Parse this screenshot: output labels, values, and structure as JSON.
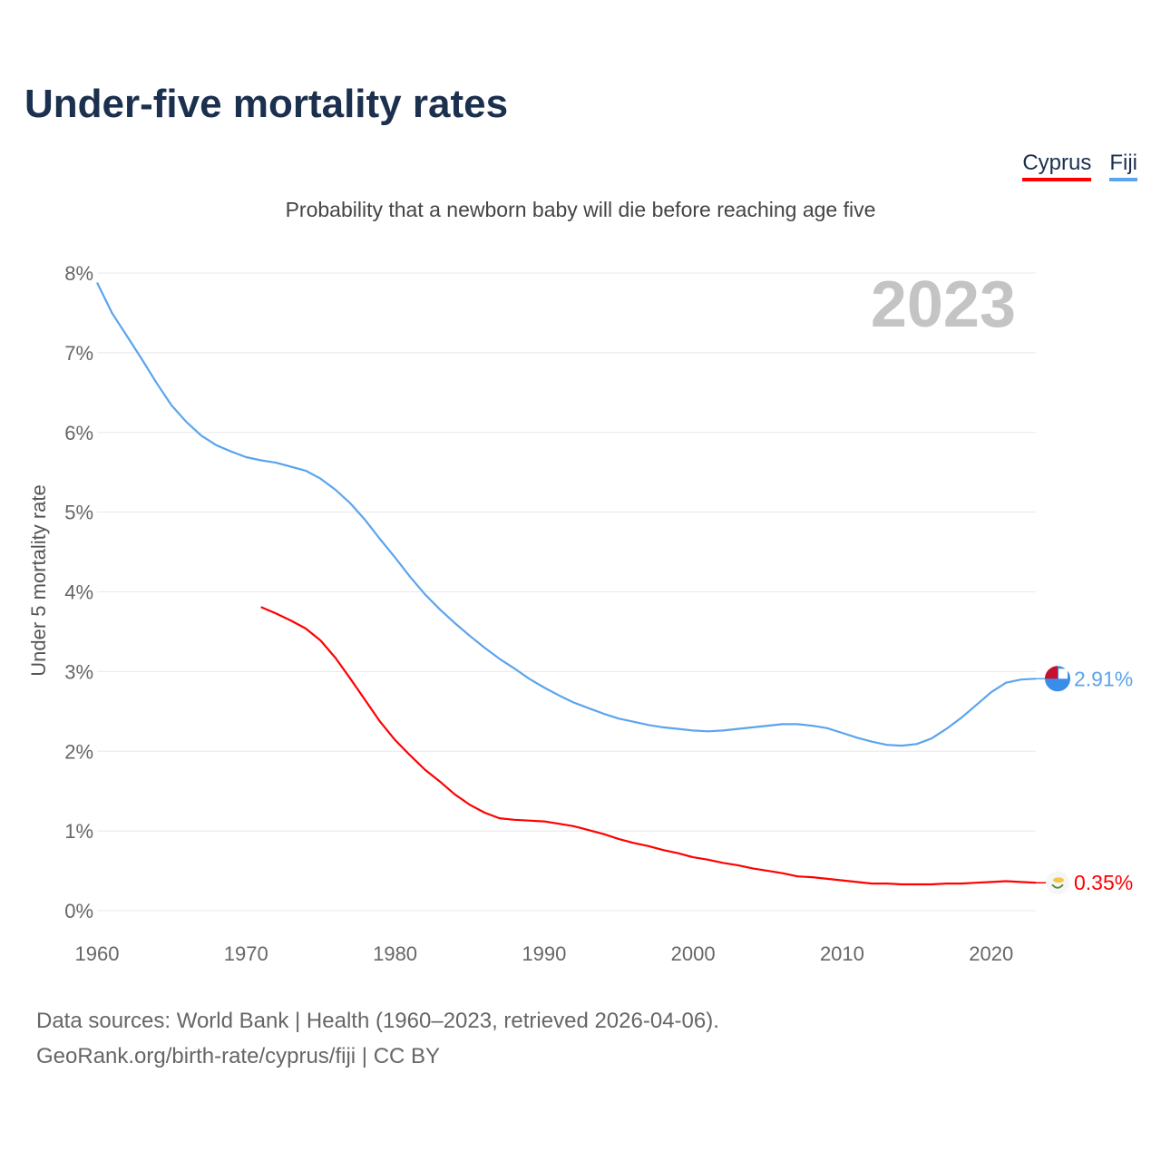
{
  "chart_data": {
    "type": "line",
    "title": "Under-five mortality rates",
    "subtitle": "Probability that a newborn baby will die before reaching age five",
    "ylabel": "Under 5 mortality rate",
    "xlabel": "",
    "year_label": "2023",
    "ylim": [
      0,
      8
    ],
    "xlim": [
      1960,
      2023
    ],
    "y_ticks": [
      "0%",
      "1%",
      "2%",
      "3%",
      "4%",
      "5%",
      "6%",
      "7%",
      "8%"
    ],
    "x_ticks": [
      "1960",
      "1970",
      "1980",
      "1990",
      "2000",
      "2010",
      "2020"
    ],
    "grid": true,
    "legend_position": "top-right",
    "series": [
      {
        "name": "Cyprus",
        "color": "#ff0000",
        "end_label": "0.35%",
        "start_year": 1971,
        "values": [
          3.81,
          3.73,
          3.64,
          3.54,
          3.39,
          3.17,
          2.91,
          2.64,
          2.37,
          2.14,
          1.95,
          1.77,
          1.62,
          1.46,
          1.33,
          1.23,
          1.16,
          1.14,
          1.13,
          1.12,
          1.09,
          1.06,
          1.01,
          0.96,
          0.9,
          0.85,
          0.81,
          0.76,
          0.72,
          0.67,
          0.64,
          0.6,
          0.57,
          0.53,
          0.5,
          0.47,
          0.43,
          0.42,
          0.4,
          0.38,
          0.36,
          0.34,
          0.34,
          0.33,
          0.33,
          0.33,
          0.34,
          0.34,
          0.35,
          0.36,
          0.37,
          0.36,
          0.35
        ]
      },
      {
        "name": "Fiji",
        "color": "#5ba4ee",
        "end_label": "2.91%",
        "start_year": 1960,
        "values": [
          7.88,
          7.5,
          7.21,
          6.92,
          6.62,
          6.34,
          6.13,
          5.96,
          5.84,
          5.76,
          5.69,
          5.65,
          5.62,
          5.57,
          5.52,
          5.42,
          5.28,
          5.11,
          4.9,
          4.66,
          4.43,
          4.19,
          3.97,
          3.78,
          3.61,
          3.45,
          3.3,
          3.16,
          3.04,
          2.91,
          2.8,
          2.7,
          2.61,
          2.54,
          2.47,
          2.41,
          2.37,
          2.33,
          2.3,
          2.28,
          2.26,
          2.25,
          2.26,
          2.28,
          2.3,
          2.32,
          2.34,
          2.34,
          2.32,
          2.29,
          2.23,
          2.17,
          2.12,
          2.08,
          2.07,
          2.09,
          2.16,
          2.28,
          2.42,
          2.58,
          2.74,
          2.86,
          2.9,
          2.91
        ]
      }
    ]
  },
  "source": {
    "line1": "Data sources: World Bank | Health (1960–2023, retrieved 2026-04-06).",
    "line2": "GeoRank.org/birth-rate/cyprus/fiji | CC BY"
  }
}
